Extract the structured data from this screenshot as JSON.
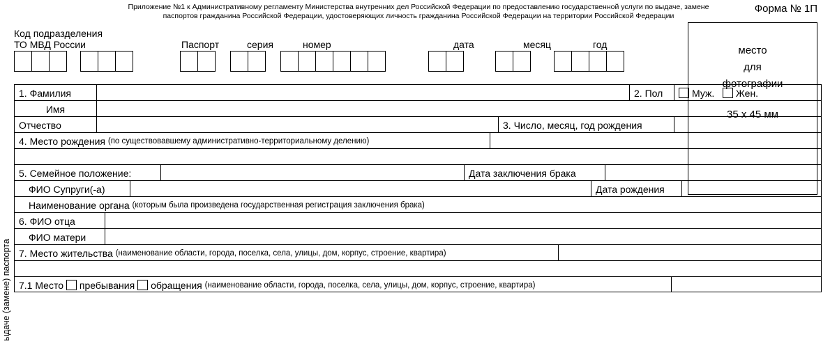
{
  "header": {
    "line1": "Приложение №1 к Административному регламенту Министерства внутренних дел Российской Федерации по предоставлению государственной услуги по выдаче, замене",
    "line2": "паспортов гражданина Российской Федерации, удостоверяющих личность гражданина Российской Федерации на территории Российской Федерации"
  },
  "form_number": "Форма № 1П",
  "photo": {
    "l1": "место",
    "l2": "для",
    "l3": "фотографии",
    "l4": "35 x 45 мм"
  },
  "side_text": "ыдаче (замене) паспорта",
  "labels": {
    "kod_l1": "Код подразделения",
    "kod_l2": "ТО МВД России",
    "passport": "Паспорт",
    "series": "серия",
    "number": "номер",
    "date": "дата",
    "month": "месяц",
    "year": "год"
  },
  "cellgroups": {
    "kod_a": 3,
    "kod_b": 3,
    "series_a": 2,
    "series_b": 2,
    "number": 6,
    "date": 2,
    "month": 2,
    "year": 4
  },
  "rows": {
    "r1": {
      "surname": "1. Фамилия",
      "sex": "2. Пол",
      "male": "Муж.",
      "female": "Жен."
    },
    "r2": {
      "name": "Имя"
    },
    "r3": {
      "patr": "Отчество",
      "dob": "3. Число, месяц, год рождения"
    },
    "r4": {
      "label": "4. Место рождения",
      "small": "(по существовавшему административно-территориальному делению)"
    },
    "r5": {
      "label": "5. Семейное положение:",
      "marriage": "Дата заключения брака"
    },
    "r6": {
      "spouse": "ФИО Супруги(-а)",
      "dob": "Дата рождения"
    },
    "r7": {
      "label": "Наименование органа",
      "small": "(которым была произведена государственная регистрация заключения брака)"
    },
    "r8": {
      "father": "6. ФИО отца"
    },
    "r9": {
      "mother": "ФИО матери"
    },
    "r10": {
      "label": "7. Место жительства",
      "small": "(наименование области, города, поселка, села, улицы, дом, корпус, строение, квартира)"
    },
    "r11": {
      "label": "7.1 Место",
      "stay": "пребывания",
      "appeal": "обращения",
      "small": "(наименование области, города, поселка, села, улицы, дом, корпус, строение, квартира)"
    }
  }
}
